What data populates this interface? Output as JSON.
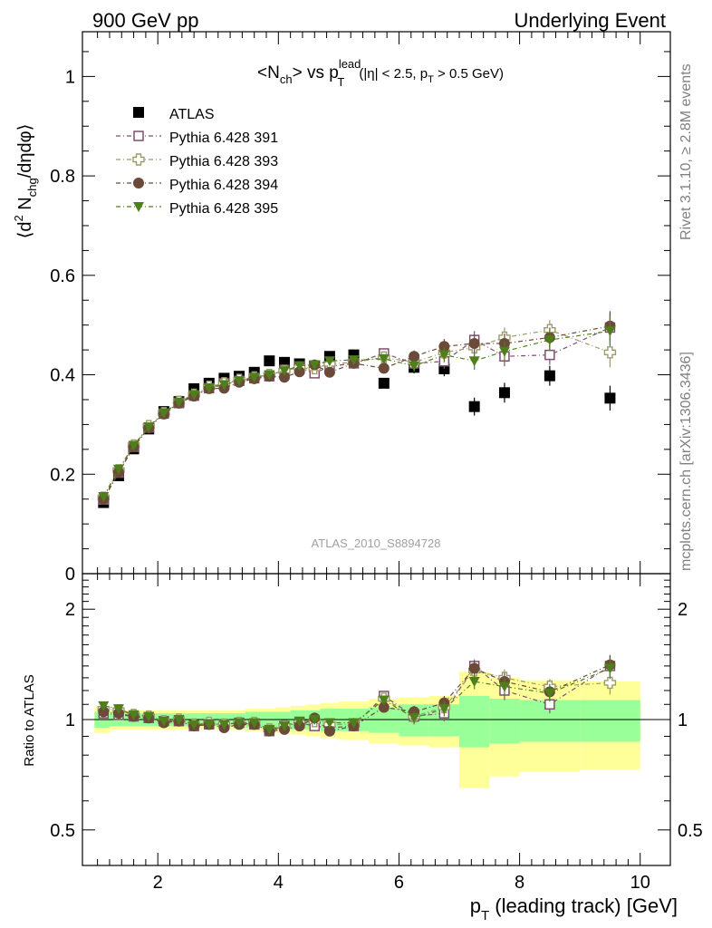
{
  "header": {
    "left": "900 GeV pp",
    "right": "Underlying Event"
  },
  "side_labels": {
    "rivet": "Rivet 3.1.10, ≥ 2.8M events",
    "mcplots": "mcplots.cern.ch [arXiv:1306.3436]"
  },
  "chart_data": [
    {
      "panel": "main",
      "type": "scatter",
      "title": {
        "lead": "<N",
        "sub1": "ch",
        "mid": "> vs p",
        "sup2": "lead",
        "sub2": "T",
        "cut_a": "(|η| < 2.5, p",
        "cut_sub": "T",
        "cut_b": " > 0.5 GeV)"
      },
      "analysis_id": "ATLAS_2010_S8894728",
      "ylabel": {
        "a": "⟨d",
        "sup": "2",
        "b": " N",
        "sub": "chg",
        "c": "/dηdφ⟩"
      },
      "xlim": [
        0.75,
        10.5
      ],
      "ylim": [
        0,
        1.09
      ],
      "y_ticks": [
        0,
        0.2,
        0.4,
        0.6,
        0.8,
        1
      ],
      "y_tick_labels": [
        "0",
        "0.2",
        "0.4",
        "0.6",
        "0.8",
        "1"
      ],
      "legend_position": "top-left",
      "x": [
        1.1,
        1.35,
        1.6,
        1.85,
        2.1,
        2.35,
        2.6,
        2.85,
        3.1,
        3.35,
        3.6,
        3.85,
        4.1,
        4.35,
        4.6,
        4.85,
        5.25,
        5.75,
        6.25,
        6.75,
        7.25,
        7.75,
        8.5,
        9.5
      ],
      "series": [
        {
          "name": "ATLAS",
          "marker": "square-filled",
          "color": "#000000",
          "values": [
            0.143,
            0.197,
            0.251,
            0.291,
            0.326,
            0.346,
            0.372,
            0.383,
            0.393,
            0.397,
            0.405,
            0.428,
            0.425,
            0.422,
            0.418,
            0.437,
            0.44,
            0.383,
            0.415,
            0.412,
            0.336,
            0.364,
            0.398,
            0.353
          ],
          "errors": [
            0.003,
            0.003,
            0.003,
            0.003,
            0.003,
            0.004,
            0.004,
            0.004,
            0.004,
            0.005,
            0.005,
            0.005,
            0.006,
            0.006,
            0.007,
            0.008,
            0.008,
            0.01,
            0.012,
            0.015,
            0.018,
            0.02,
            0.02,
            0.025
          ]
        },
        {
          "name": "Pythia 6.428 391",
          "marker": "square-open",
          "color": "#7f4f6f",
          "values": [
            0.149,
            0.203,
            0.255,
            0.294,
            0.322,
            0.343,
            0.358,
            0.373,
            0.383,
            0.388,
            0.393,
            0.397,
            0.41,
            0.413,
            0.403,
            0.417,
            0.423,
            0.443,
            0.423,
            0.427,
            0.47,
            0.437,
            0.44,
            0.495
          ],
          "errors": [
            0.003,
            0.003,
            0.003,
            0.003,
            0.003,
            0.003,
            0.003,
            0.004,
            0.004,
            0.004,
            0.004,
            0.005,
            0.005,
            0.006,
            0.006,
            0.007,
            0.008,
            0.01,
            0.012,
            0.015,
            0.018,
            0.02,
            0.02,
            0.03
          ]
        },
        {
          "name": "Pythia 6.428 393",
          "marker": "cross-open",
          "color": "#9b9b6a",
          "values": [
            0.153,
            0.208,
            0.258,
            0.297,
            0.323,
            0.346,
            0.36,
            0.376,
            0.383,
            0.39,
            0.395,
            0.4,
            0.408,
            0.415,
            0.413,
            0.422,
            0.425,
            0.435,
            0.425,
            0.445,
            0.455,
            0.475,
            0.49,
            0.445
          ],
          "errors": [
            0.003,
            0.003,
            0.003,
            0.003,
            0.003,
            0.003,
            0.003,
            0.004,
            0.004,
            0.004,
            0.004,
            0.005,
            0.005,
            0.006,
            0.006,
            0.007,
            0.008,
            0.01,
            0.012,
            0.015,
            0.018,
            0.02,
            0.02,
            0.03
          ]
        },
        {
          "name": "Pythia 6.428 394",
          "marker": "circle-filled",
          "color": "#6b4a3a",
          "values": [
            0.15,
            0.204,
            0.255,
            0.293,
            0.321,
            0.343,
            0.357,
            0.372,
            0.373,
            0.385,
            0.392,
            0.397,
            0.395,
            0.406,
            0.42,
            0.405,
            0.423,
            0.413,
            0.437,
            0.457,
            0.463,
            0.463,
            0.475,
            0.498
          ],
          "errors": [
            0.003,
            0.003,
            0.003,
            0.003,
            0.003,
            0.003,
            0.003,
            0.004,
            0.004,
            0.004,
            0.004,
            0.005,
            0.005,
            0.006,
            0.006,
            0.007,
            0.008,
            0.01,
            0.012,
            0.015,
            0.018,
            0.02,
            0.02,
            0.03
          ]
        },
        {
          "name": "Pythia 6.428 395",
          "marker": "triangle-down-filled",
          "color": "#4f7f1a",
          "values": [
            0.155,
            0.21,
            0.258,
            0.295,
            0.323,
            0.345,
            0.36,
            0.373,
            0.38,
            0.388,
            0.395,
            0.4,
            0.408,
            0.418,
            0.42,
            0.428,
            0.43,
            0.432,
            0.418,
            0.44,
            0.428,
            0.447,
            0.47,
            0.488
          ],
          "errors": [
            0.003,
            0.003,
            0.003,
            0.003,
            0.003,
            0.003,
            0.003,
            0.004,
            0.004,
            0.004,
            0.004,
            0.005,
            0.005,
            0.006,
            0.006,
            0.007,
            0.008,
            0.01,
            0.012,
            0.015,
            0.018,
            0.02,
            0.02,
            0.03
          ]
        }
      ]
    },
    {
      "panel": "ratio",
      "type": "scatter",
      "ylabel": "Ratio to ATLAS",
      "xlabel": {
        "a": "p",
        "sub": "T",
        "b": " (leading track) [GeV]"
      },
      "xlim": [
        0.75,
        10.5
      ],
      "y_scale": "log",
      "ylim": [
        0.4,
        2.5
      ],
      "y_ticks": [
        0.5,
        1,
        2
      ],
      "y_tick_labels": [
        "0.5",
        "1",
        "2"
      ],
      "x_ticks": [
        2,
        4,
        6,
        8,
        10
      ],
      "x_tick_labels": [
        "2",
        "4",
        "6",
        "8",
        "10"
      ],
      "bands": {
        "edges": [
          0.95,
          1.2,
          1.45,
          1.7,
          1.95,
          2.2,
          2.45,
          2.7,
          2.95,
          3.2,
          3.45,
          3.7,
          3.95,
          4.2,
          4.45,
          4.7,
          5.0,
          5.5,
          6.0,
          6.5,
          7.0,
          7.5,
          8.0,
          9.0,
          10.0
        ],
        "inner_color": "#99ff99",
        "outer_color": "#ffff99",
        "inner": [
          0.05,
          0.04,
          0.04,
          0.04,
          0.04,
          0.04,
          0.04,
          0.04,
          0.04,
          0.04,
          0.05,
          0.05,
          0.05,
          0.06,
          0.06,
          0.07,
          0.07,
          0.08,
          0.1,
          0.1,
          0.16,
          0.14,
          0.13,
          0.13
        ],
        "outer": [
          0.08,
          0.06,
          0.06,
          0.06,
          0.06,
          0.06,
          0.06,
          0.06,
          0.06,
          0.06,
          0.07,
          0.07,
          0.08,
          0.09,
          0.1,
          0.11,
          0.12,
          0.14,
          0.15,
          0.16,
          0.35,
          0.3,
          0.28,
          0.27
        ]
      },
      "series": [
        {
          "name": "Pythia 6.428 391",
          "values": [
            1.04,
            1.03,
            1.02,
            1.01,
            0.99,
            0.99,
            0.96,
            0.97,
            0.97,
            0.98,
            0.97,
            0.93,
            0.96,
            0.98,
            0.96,
            0.95,
            0.96,
            1.16,
            1.02,
            1.04,
            1.4,
            1.2,
            1.1,
            1.4
          ],
          "errors": [
            0.02,
            0.02,
            0.02,
            0.02,
            0.02,
            0.02,
            0.02,
            0.02,
            0.02,
            0.02,
            0.02,
            0.02,
            0.02,
            0.02,
            0.02,
            0.02,
            0.03,
            0.03,
            0.04,
            0.05,
            0.06,
            0.07,
            0.06,
            0.09
          ]
        },
        {
          "name": "Pythia 6.428 393",
          "values": [
            1.07,
            1.06,
            1.03,
            1.02,
            0.99,
            1.0,
            0.97,
            0.98,
            0.97,
            0.98,
            0.98,
            0.94,
            0.96,
            0.98,
            0.99,
            0.97,
            0.97,
            1.14,
            1.02,
            1.08,
            1.36,
            1.3,
            1.23,
            1.26
          ],
          "errors": [
            0.02,
            0.02,
            0.02,
            0.02,
            0.02,
            0.02,
            0.02,
            0.02,
            0.02,
            0.02,
            0.02,
            0.02,
            0.02,
            0.02,
            0.02,
            0.02,
            0.03,
            0.03,
            0.04,
            0.05,
            0.06,
            0.07,
            0.06,
            0.09
          ]
        },
        {
          "name": "Pythia 6.428 394",
          "values": [
            1.05,
            1.04,
            1.02,
            1.01,
            0.98,
            0.99,
            0.96,
            0.97,
            0.95,
            0.97,
            0.97,
            0.93,
            0.94,
            0.96,
            1.01,
            0.93,
            0.96,
            1.08,
            1.05,
            1.11,
            1.38,
            1.27,
            1.19,
            1.41
          ],
          "errors": [
            0.02,
            0.02,
            0.02,
            0.02,
            0.02,
            0.02,
            0.02,
            0.02,
            0.02,
            0.02,
            0.02,
            0.02,
            0.02,
            0.02,
            0.02,
            0.02,
            0.03,
            0.03,
            0.04,
            0.05,
            0.06,
            0.07,
            0.06,
            0.09
          ]
        },
        {
          "name": "Pythia 6.428 395",
          "values": [
            1.09,
            1.07,
            1.03,
            1.02,
            0.99,
            1.0,
            0.97,
            0.97,
            0.97,
            0.98,
            0.98,
            0.94,
            0.96,
            0.99,
            1.0,
            0.98,
            0.98,
            1.13,
            1.01,
            1.07,
            1.27,
            1.23,
            1.18,
            1.38
          ],
          "errors": [
            0.02,
            0.02,
            0.02,
            0.02,
            0.02,
            0.02,
            0.02,
            0.02,
            0.02,
            0.02,
            0.02,
            0.02,
            0.02,
            0.02,
            0.02,
            0.02,
            0.03,
            0.03,
            0.04,
            0.05,
            0.06,
            0.07,
            0.06,
            0.09
          ]
        }
      ]
    }
  ]
}
